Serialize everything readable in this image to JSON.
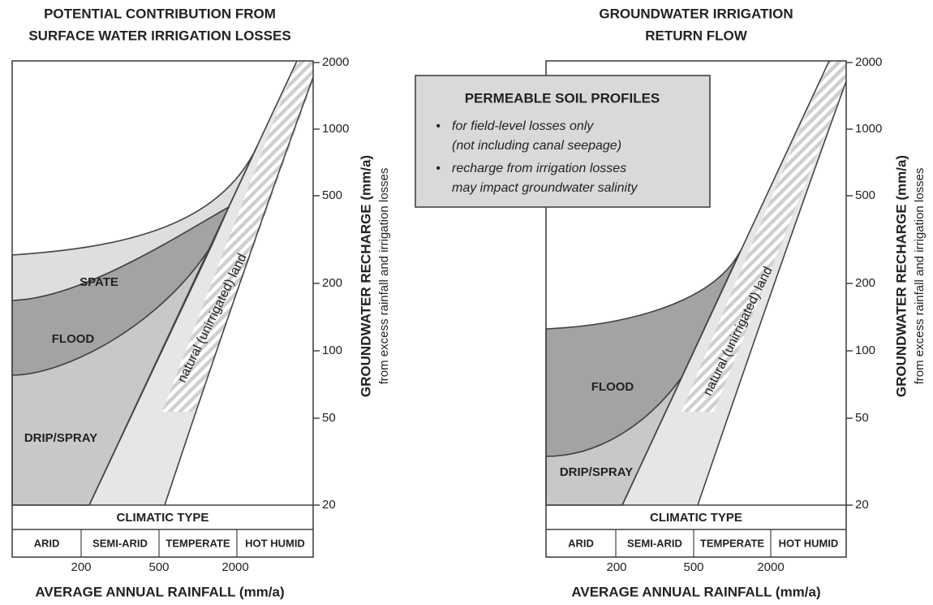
{
  "panels": [
    {
      "title": [
        "POTENTIAL CONTRIBUTION FROM",
        "SURFACE WATER IRRIGATION LOSSES"
      ],
      "regions": [
        "SPATE",
        "FLOOD",
        "DRIP/SPRAY"
      ],
      "band_label": "natural (unirrigated) land",
      "y_axis": {
        "title": "GROUNDWATER RECHARGE (mm/a)",
        "subtitle": "from excess rainfall and irrigation losses",
        "ticks": [
          2000,
          1000,
          500,
          200,
          100,
          50,
          20
        ]
      },
      "climatic": {
        "title": "CLIMATIC TYPE",
        "types": [
          "ARID",
          "SEMI-ARID",
          "TEMPERATE",
          "HOT HUMID"
        ]
      },
      "x_axis": {
        "ticks": [
          200,
          500,
          2000
        ],
        "title": "AVERAGE ANNUAL RAINFALL (mm/a)"
      }
    },
    {
      "title": [
        "GROUNDWATER IRRIGATION",
        "RETURN FLOW"
      ],
      "regions": [
        "FLOOD",
        "DRIP/SPRAY"
      ],
      "band_label": "natural (unirrigated) land",
      "y_axis": {
        "title": "GROUNDWATER RECHARGE (mm/a)",
        "subtitle": "from excess rainfall and irrigation losses",
        "ticks": [
          2000,
          1000,
          500,
          200,
          100,
          50,
          20
        ]
      },
      "climatic": {
        "title": "CLIMATIC TYPE",
        "types": [
          "ARID",
          "SEMI-ARID",
          "TEMPERATE",
          "HOT HUMID"
        ]
      },
      "x_axis": {
        "ticks": [
          200,
          500,
          2000
        ],
        "title": "AVERAGE ANNUAL RAINFALL (mm/a)"
      }
    }
  ],
  "note": {
    "title": "PERMEABLE SOIL PROFILES",
    "bullets": [
      [
        "for field-level losses only",
        "(not including canal seepage)"
      ],
      [
        "recharge from irrigation losses",
        "may impact groundwater salinity"
      ]
    ]
  }
}
